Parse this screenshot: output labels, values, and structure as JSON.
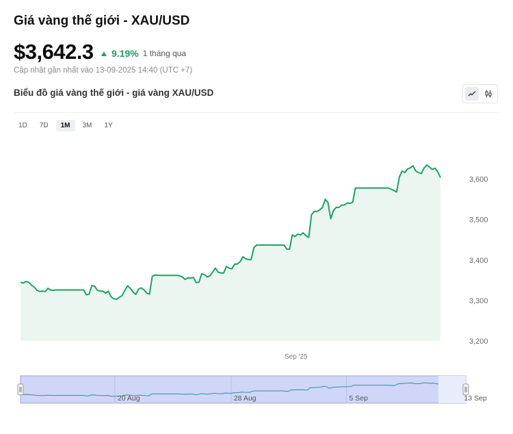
{
  "header": {
    "title": "Giá vàng thế giới - XAU/USD",
    "price": "$3,642.3",
    "change_pct": "9.19%",
    "change_period": "1 tháng qua",
    "updated": "Cập nhật gần nhất vào 13-09-2025 14:40 (UTC +7)"
  },
  "chart_header": {
    "subtitle": "Biểu đồ giá vàng thế giới - giá vàng XAU/USD"
  },
  "view_toggle": {
    "line_icon": "line-chart-icon",
    "candle_icon": "candlestick-icon",
    "active": "line"
  },
  "ranges": [
    {
      "label": "1D",
      "active": false
    },
    {
      "label": "7D",
      "active": false
    },
    {
      "label": "1M",
      "active": true
    },
    {
      "label": "3M",
      "active": false
    },
    {
      "label": "1Y",
      "active": false
    }
  ],
  "colors": {
    "line": "#1aa260",
    "area": "#eaf6ef",
    "navigator_fill": "#cfd6f7",
    "navigator_border": "#9aa6e6",
    "up": "#1aa260"
  },
  "chart_data": {
    "type": "area",
    "series": [
      {
        "values": [
          3345,
          3343,
          3347,
          3345,
          3338,
          3333,
          3325,
          3322,
          3323,
          3322,
          3330,
          3326,
          3325,
          3326,
          3326,
          3326,
          3326,
          3326,
          3326,
          3326,
          3326,
          3326,
          3326,
          3326,
          3314,
          3316,
          3337,
          3335,
          3325,
          3323,
          3323,
          3318,
          3323,
          3309,
          3304,
          3303,
          3308,
          3312,
          3325,
          3336,
          3330,
          3321,
          3315,
          3328,
          3331,
          3326,
          3318,
          3316,
          3360,
          3363,
          3362,
          3362,
          3362,
          3362,
          3362,
          3362,
          3362,
          3362,
          3361,
          3358,
          3352,
          3356,
          3355,
          3357,
          3344,
          3345,
          3366,
          3364,
          3358,
          3361,
          3370,
          3380,
          3370,
          3368,
          3368,
          3384,
          3380,
          3378,
          3390,
          3390,
          3396,
          3408,
          3403,
          3401,
          3401,
          3430,
          3437,
          3437,
          3437,
          3437,
          3437,
          3437,
          3437,
          3437,
          3437,
          3437,
          3437,
          3427,
          3427,
          3462,
          3458,
          3464,
          3462,
          3467,
          3460,
          3456,
          3512,
          3520,
          3520,
          3524,
          3530,
          3550,
          3542,
          3502,
          3522,
          3530,
          3530,
          3536,
          3536,
          3541,
          3540,
          3543,
          3578,
          3578,
          3578,
          3578,
          3578,
          3578,
          3578,
          3578,
          3578,
          3578,
          3578,
          3578,
          3578,
          3575,
          3572,
          3568,
          3605,
          3620,
          3616,
          3625,
          3628,
          3633,
          3620,
          3616,
          3614,
          3627,
          3635,
          3630,
          3624,
          3627,
          3618,
          3604
        ]
      }
    ],
    "y_ticks": [
      "3,200",
      "3,300",
      "3,400",
      "3,500",
      "3,600"
    ],
    "ylim": [
      3200,
      3640
    ],
    "x_tick": "Sep '25",
    "x_tick_value": 0.656,
    "grid": false,
    "navigator": {
      "labels": [
        "20 Aug",
        "28 Aug",
        "5 Sep",
        "13 Sep"
      ],
      "label_positions": [
        0.218,
        0.479,
        0.738,
        0.996
      ]
    }
  }
}
